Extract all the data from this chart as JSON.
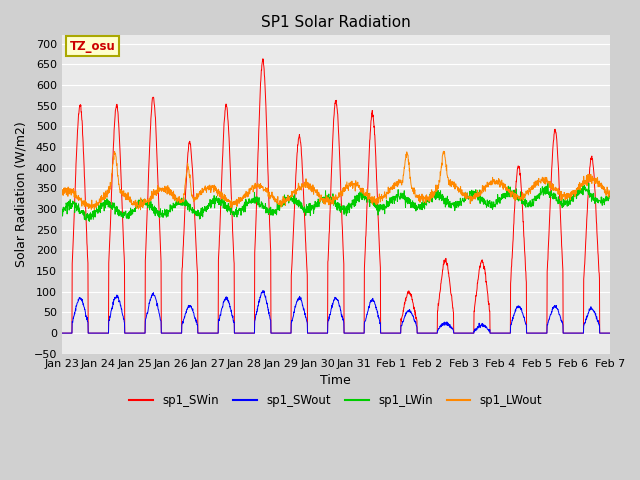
{
  "title": "SP1 Solar Radiation",
  "xlabel": "Time",
  "ylabel": "Solar Radiation (W/m2)",
  "ylim": [
    -50,
    720
  ],
  "yticks": [
    -50,
    0,
    50,
    100,
    150,
    200,
    250,
    300,
    350,
    400,
    450,
    500,
    550,
    600,
    650,
    700
  ],
  "fig_bg_color": "#d0d0d0",
  "plot_bg_color": "#eaeaea",
  "grid_color": "white",
  "annotation_text": "TZ_osu",
  "annotation_bg": "#ffffcc",
  "annotation_border": "#aaa800",
  "annotation_text_color": "#cc0000",
  "colors": {
    "sp1_SWin": "#ff0000",
    "sp1_SWout": "#0000ff",
    "sp1_LWin": "#00cc00",
    "sp1_LWout": "#ff8800"
  },
  "tick_labels": [
    "Jan 23",
    "Jan 24",
    "Jan 25",
    "Jan 26",
    "Jan 27",
    "Jan 28",
    "Jan 29",
    "Jan 30",
    "Jan 31",
    "Feb 1",
    "Feb 2",
    "Feb 3",
    "Feb 4",
    "Feb 5",
    "Feb 6",
    "Feb 7"
  ],
  "n_days": 16,
  "points_per_day": 144
}
